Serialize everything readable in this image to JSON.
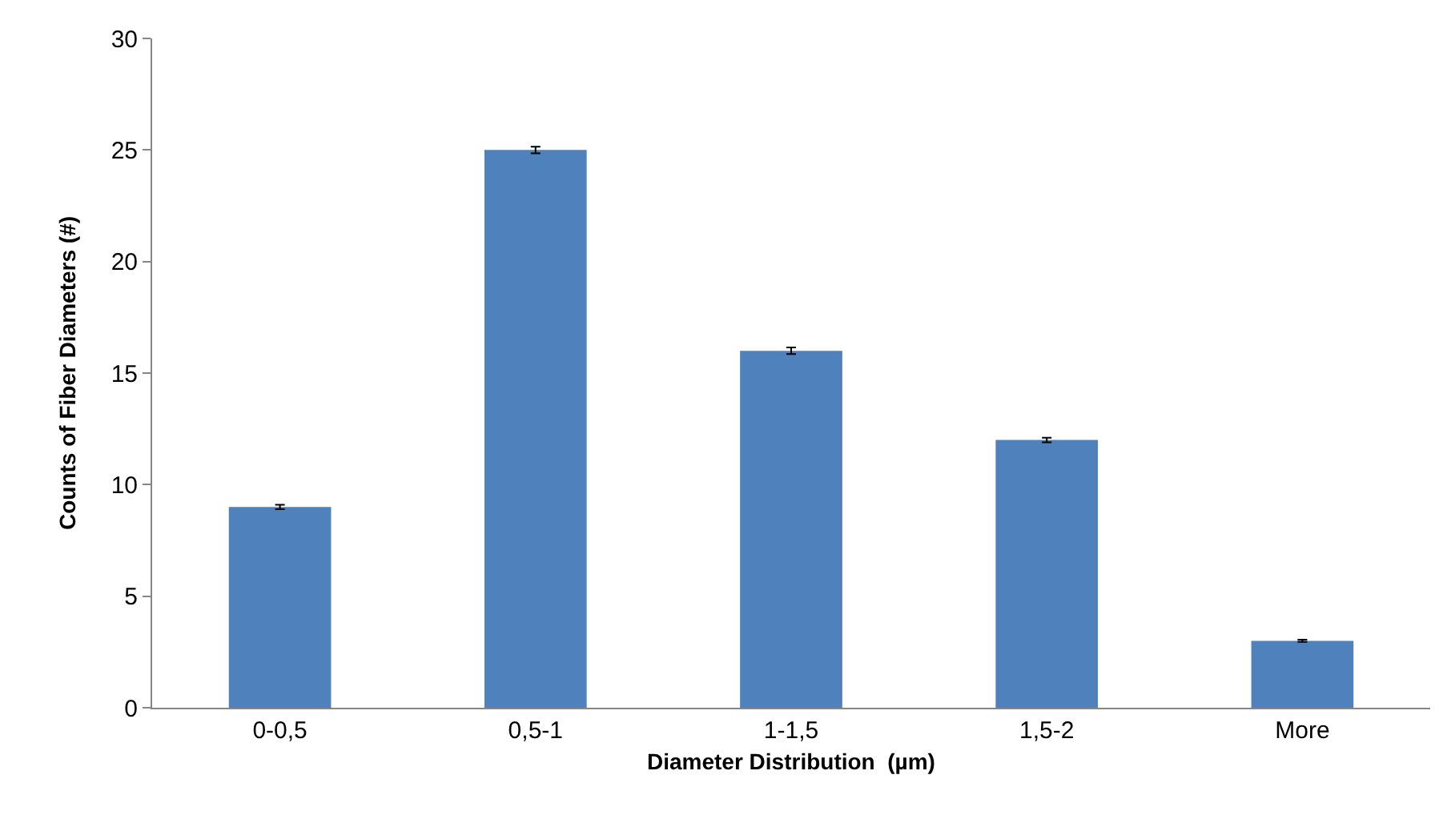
{
  "chart_data": {
    "type": "bar",
    "xlabel": "Diameter Distribution  (µm)",
    "ylabel": "Counts of Fiber Diameters (#)",
    "categories": [
      "0-0,5",
      "0,5-1",
      "1-1,5",
      "1,5-2",
      "More"
    ],
    "values": [
      9,
      25,
      16,
      12,
      3
    ],
    "errors": [
      0.1,
      0.15,
      0.15,
      0.1,
      0.05
    ],
    "color": "#4f81bd",
    "ylim": [
      0,
      30
    ],
    "yticks": [
      0,
      5,
      10,
      15,
      20,
      25,
      30
    ],
    "grid": false,
    "legend": false
  }
}
